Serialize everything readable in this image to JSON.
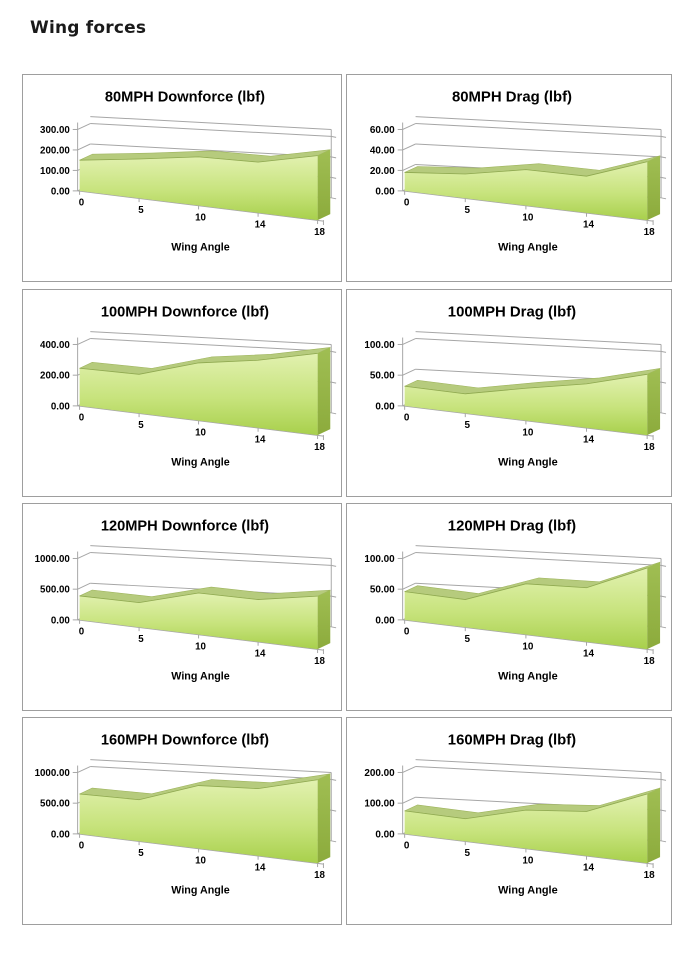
{
  "page": {
    "title": "Wing forces"
  },
  "colors": {
    "grid": "#a6a6a6",
    "box_border": "#9e9e9e",
    "area_top": "#e2f1b0",
    "area_mid": "#c7e37c",
    "area_bottom": "#a8d04c",
    "area_edge": "#8fa950",
    "ridge": "#b6cb7d",
    "ridge_edge": "#9fb55f",
    "side_top": "#a0be53",
    "side_bottom": "#8cab3c",
    "text": "#000000"
  },
  "chart_data": [
    {
      "type": "area",
      "style": "3d-area",
      "title": "80MPH Downforce (lbf)",
      "categories": [
        "0",
        "5",
        "10",
        "14",
        "18"
      ],
      "values": [
        150,
        170,
        190,
        180,
        210
      ],
      "xlabel": "Wing Angle",
      "ylabel": "",
      "ylim": [
        0,
        300
      ],
      "yticks": [
        0,
        100,
        200,
        300
      ],
      "ytick_labels": [
        "0.00",
        "100.00",
        "200.00",
        "300.00"
      ],
      "grid": true,
      "legend": false
    },
    {
      "type": "area",
      "style": "3d-area",
      "title": "80MPH Drag (lbf)",
      "categories": [
        "0",
        "5",
        "10",
        "14",
        "18"
      ],
      "values": [
        18,
        21,
        28,
        26,
        38
      ],
      "xlabel": "Wing Angle",
      "ylabel": "",
      "ylim": [
        0,
        60
      ],
      "yticks": [
        0,
        20,
        40,
        60
      ],
      "ytick_labels": [
        "0.00",
        "20.00",
        "40.00",
        "60.00"
      ],
      "grid": true,
      "legend": false
    },
    {
      "type": "area",
      "style": "3d-area",
      "title": "100MPH Downforce (lbf)",
      "categories": [
        "0",
        "5",
        "10",
        "14",
        "18"
      ],
      "values": [
        245,
        225,
        300,
        320,
        355
      ],
      "xlabel": "Wing Angle",
      "ylabel": "",
      "ylim": [
        0,
        400
      ],
      "yticks": [
        0,
        200,
        400
      ],
      "ytick_labels": [
        "0.00",
        "200.00",
        "400.00"
      ],
      "grid": true,
      "legend": false
    },
    {
      "type": "area",
      "style": "3d-area",
      "title": "100MPH Drag (lbf)",
      "categories": [
        "0",
        "5",
        "10",
        "14",
        "18"
      ],
      "values": [
        32,
        28,
        42,
        52,
        66
      ],
      "xlabel": "Wing Angle",
      "ylabel": "",
      "ylim": [
        0,
        100
      ],
      "yticks": [
        0,
        50,
        100
      ],
      "ytick_labels": [
        "0.00",
        "50.00",
        "100.00"
      ],
      "grid": true,
      "legend": false
    },
    {
      "type": "area",
      "style": "3d-area",
      "title": "120MPH Downforce (lbf)",
      "categories": [
        "0",
        "5",
        "10",
        "14",
        "18"
      ],
      "values": [
        390,
        355,
        540,
        500,
        575
      ],
      "xlabel": "Wing Angle",
      "ylabel": "",
      "ylim": [
        0,
        1000
      ],
      "yticks": [
        0,
        500,
        1000
      ],
      "ytick_labels": [
        "0.00",
        "500.00",
        "1000.00"
      ],
      "grid": true,
      "legend": false
    },
    {
      "type": "area",
      "style": "3d-area",
      "title": "120MPH Drag (lbf)",
      "categories": [
        "0",
        "5",
        "10",
        "14",
        "18"
      ],
      "values": [
        46,
        40,
        66,
        64,
        88
      ],
      "xlabel": "Wing Angle",
      "ylabel": "",
      "ylim": [
        0,
        100
      ],
      "yticks": [
        0,
        50,
        100
      ],
      "ytick_labels": [
        "0.00",
        "50.00",
        "100.00"
      ],
      "grid": true,
      "legend": false
    },
    {
      "type": "area",
      "style": "3d-area",
      "title": "160MPH Downforce (lbf)",
      "categories": [
        "0",
        "5",
        "10",
        "14",
        "18"
      ],
      "values": [
        650,
        600,
        820,
        795,
        905
      ],
      "xlabel": "Wing Angle",
      "ylabel": "",
      "ylim": [
        0,
        1000
      ],
      "yticks": [
        0,
        500,
        1000
      ],
      "ytick_labels": [
        "0.00",
        "500.00",
        "1000.00"
      ],
      "grid": true,
      "legend": false
    },
    {
      "type": "area",
      "style": "3d-area",
      "title": "160MPH Drag (lbf)",
      "categories": [
        "0",
        "5",
        "10",
        "14",
        "18"
      ],
      "values": [
        75,
        65,
        100,
        105,
        150
      ],
      "xlabel": "Wing Angle",
      "ylabel": "",
      "ylim": [
        0,
        200
      ],
      "yticks": [
        0,
        100,
        200
      ],
      "ytick_labels": [
        "0.00",
        "100.00",
        "200.00"
      ],
      "grid": true,
      "legend": false
    }
  ]
}
